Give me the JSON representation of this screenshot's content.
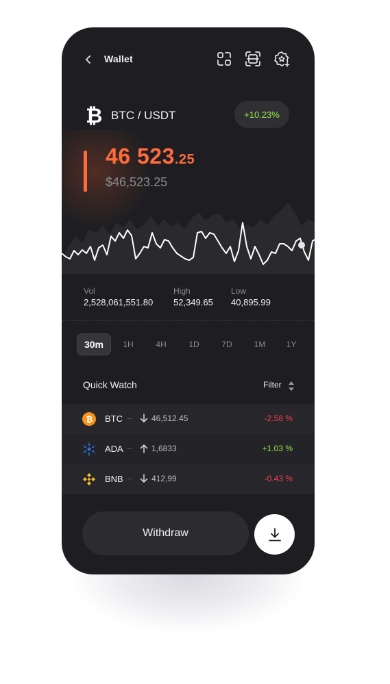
{
  "header": {
    "title": "Wallet",
    "icons": [
      "back-icon",
      "scan-icon",
      "qr-frame-icon",
      "star-badge-icon"
    ]
  },
  "pair": {
    "label": "BTC / USDT",
    "change": "+10.23%"
  },
  "price": {
    "main": "46 523",
    "decimals": ".25",
    "usd": "$46,523.25"
  },
  "stats": [
    {
      "label": "Vol",
      "value": "2,528,061,551.80"
    },
    {
      "label": "High",
      "value": "52,349.65"
    },
    {
      "label": "Low",
      "value": "40,895.99"
    }
  ],
  "timeframes": [
    "30m",
    "1H",
    "4H",
    "1D",
    "7D",
    "1M",
    "1Y"
  ],
  "active_timeframe": "30m",
  "quick_watch": {
    "title": "Quick Watch",
    "filter_label": "Filter",
    "items": [
      {
        "symbol": "BTC",
        "direction": "down",
        "price": "46,512.45",
        "change": "-2.58 %",
        "icon": "bitcoin-icon"
      },
      {
        "symbol": "ADA",
        "direction": "up",
        "price": "1,6833",
        "change": "+1.03 %",
        "icon": "cardano-icon"
      },
      {
        "symbol": "BNB",
        "direction": "down",
        "price": "412,99",
        "change": "-0.43 %",
        "icon": "binance-icon"
      }
    ]
  },
  "actions": {
    "withdraw_label": "Withdraw"
  },
  "colors": {
    "background": "#1e1e22",
    "accent": "#ff6b3d",
    "positive": "#9ae64a",
    "negative": "#ff3b4f"
  }
}
